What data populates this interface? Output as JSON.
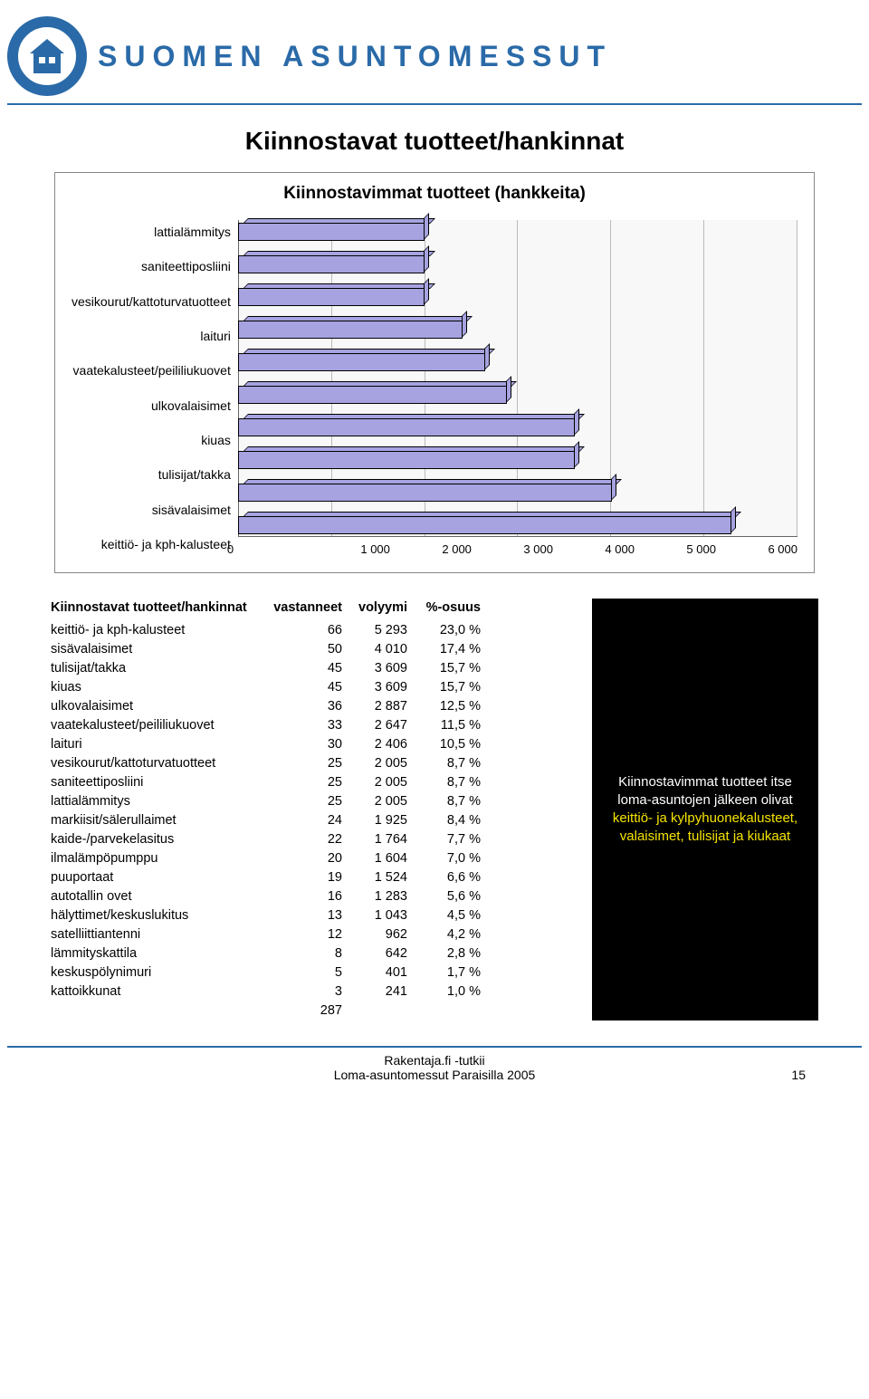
{
  "brand": "SUOMEN ASUNTOMESSUT",
  "page_title": "Kiinnostavat tuotteet/hankinnat",
  "chart": {
    "title": "Kiinnostavimmat tuotteet (hankkeita)",
    "type": "bar-horizontal",
    "bar_color": "#a6a3e0",
    "border_color": "#000000",
    "grid_color": "#bbbbbb",
    "background_color": "#f8f8f8",
    "xmin": 0,
    "xmax": 6000,
    "xtick_step": 1000,
    "xticks": [
      "0",
      "1 000",
      "2 000",
      "3 000",
      "4 000",
      "5 000",
      "6 000"
    ],
    "label_fontsize": 14,
    "title_fontsize": 19,
    "bars": [
      {
        "label": "lattialämmitys",
        "value": 2005
      },
      {
        "label": "saniteettiposliini",
        "value": 2005
      },
      {
        "label": "vesikourut/kattoturvatuotteet",
        "value": 2005
      },
      {
        "label": "laituri",
        "value": 2406
      },
      {
        "label": "vaatekalusteet/peililiukuovet",
        "value": 2647
      },
      {
        "label": "ulkovalaisimet",
        "value": 2887
      },
      {
        "label": "kiuas",
        "value": 3609
      },
      {
        "label": "tulisijat/takka",
        "value": 3609
      },
      {
        "label": "sisävalaisimet",
        "value": 4010
      },
      {
        "label": "keittiö- ja kph-kalusteet",
        "value": 5293
      }
    ]
  },
  "table": {
    "header_label": "Kiinnostavat tuotteet/hankinnat",
    "header_n": "vastanneet",
    "header_vol": "volyymi",
    "header_pct": "%-osuus",
    "rows": [
      {
        "label": "keittiö- ja kph-kalusteet",
        "n": "66",
        "vol": "5 293",
        "pct": "23,0 %"
      },
      {
        "label": "sisävalaisimet",
        "n": "50",
        "vol": "4 010",
        "pct": "17,4 %"
      },
      {
        "label": "tulisijat/takka",
        "n": "45",
        "vol": "3 609",
        "pct": "15,7 %"
      },
      {
        "label": "kiuas",
        "n": "45",
        "vol": "3 609",
        "pct": "15,7 %"
      },
      {
        "label": "ulkovalaisimet",
        "n": "36",
        "vol": "2 887",
        "pct": "12,5 %"
      },
      {
        "label": "vaatekalusteet/peililiukuovet",
        "n": "33",
        "vol": "2 647",
        "pct": "11,5 %"
      },
      {
        "label": "laituri",
        "n": "30",
        "vol": "2 406",
        "pct": "10,5 %"
      },
      {
        "label": "vesikourut/kattoturvatuotteet",
        "n": "25",
        "vol": "2 005",
        "pct": "8,7 %"
      },
      {
        "label": "saniteettiposliini",
        "n": "25",
        "vol": "2 005",
        "pct": "8,7 %"
      },
      {
        "label": "lattialämmitys",
        "n": "25",
        "vol": "2 005",
        "pct": "8,7 %"
      },
      {
        "label": "markiisit/sälerullaimet",
        "n": "24",
        "vol": "1 925",
        "pct": "8,4 %"
      },
      {
        "label": "kaide-/parvekelasitus",
        "n": "22",
        "vol": "1 764",
        "pct": "7,7 %"
      },
      {
        "label": "ilmalämpöpumppu",
        "n": "20",
        "vol": "1 604",
        "pct": "7,0 %"
      },
      {
        "label": "puuportaat",
        "n": "19",
        "vol": "1 524",
        "pct": "6,6 %"
      },
      {
        "label": "autotallin ovet",
        "n": "16",
        "vol": "1 283",
        "pct": "5,6 %"
      },
      {
        "label": "hälyttimet/keskuslukitus",
        "n": "13",
        "vol": "1 043",
        "pct": "4,5 %"
      },
      {
        "label": "satelliittiantenni",
        "n": "12",
        "vol": "962",
        "pct": "4,2 %"
      },
      {
        "label": "lämmityskattila",
        "n": "8",
        "vol": "642",
        "pct": "2,8 %"
      },
      {
        "label": "keskuspölynimuri",
        "n": "5",
        "vol": "401",
        "pct": "1,7 %"
      },
      {
        "label": "kattoikkunat",
        "n": "3",
        "vol": "241",
        "pct": "1,0 %"
      }
    ],
    "total_n": "287"
  },
  "callout": {
    "background": "#000000",
    "text_color": "#ffffff",
    "highlight_color": "#f5e400",
    "line1": "Kiinnostavimmat tuotteet itse loma-asuntojen jälkeen olivat ",
    "highlight": "keittiö- ja kylpyhuonekalusteet, valaisimet, tulisijat ja kiukaat"
  },
  "footer": {
    "line1": "Rakentaja.fi -tutkii",
    "line2": "Loma-asuntomessut Paraisilla 2005",
    "page_number": "15"
  }
}
